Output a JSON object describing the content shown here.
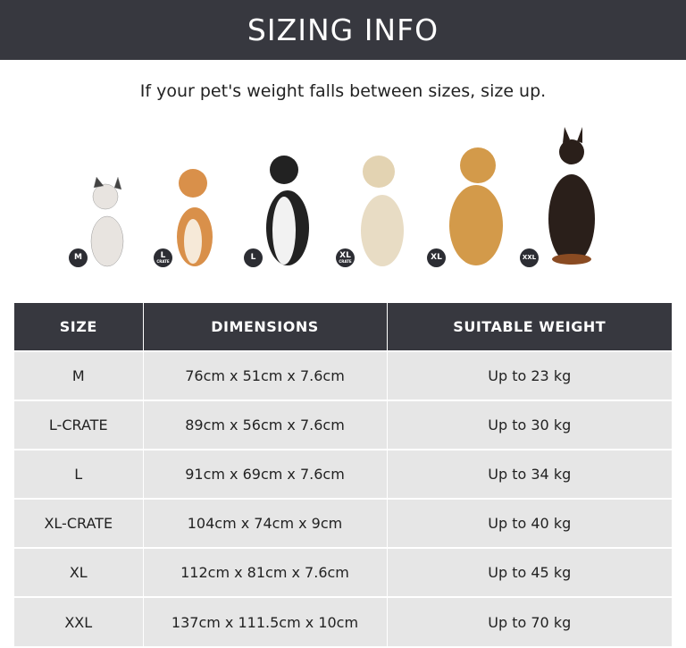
{
  "title": "SIZING INFO",
  "subtitle": "If your pet's weight falls between sizes, size up.",
  "badges": [
    {
      "main": "M",
      "sub": ""
    },
    {
      "main": "L",
      "sub": "CRATE"
    },
    {
      "main": "L",
      "sub": ""
    },
    {
      "main": "XL",
      "sub": "CRATE"
    },
    {
      "main": "XL",
      "sub": ""
    },
    {
      "main": "XXL",
      "sub": ""
    }
  ],
  "table": {
    "headers": [
      "SIZE",
      "DIMENSIONS",
      "SUITABLE WEIGHT"
    ],
    "rows": [
      [
        "M",
        "76cm x 51cm x 7.6cm",
        "Up to 23 kg"
      ],
      [
        "L-CRATE",
        "89cm x 56cm x 7.6cm",
        "Up to 30 kg"
      ],
      [
        "L",
        "91cm  x 69cm x 7.6cm",
        "Up to 34 kg"
      ],
      [
        "XL-CRATE",
        "104cm x 74cm x 9cm",
        "Up to 40 kg"
      ],
      [
        "XL",
        "112cm x 81cm x 7.6cm",
        "Up to 45 kg"
      ],
      [
        "XXL",
        "137cm x 111.5cm x 10cm",
        "Up to 70 kg"
      ]
    ]
  },
  "colors": {
    "header": "#37383f",
    "row": "#e6e6e6"
  }
}
